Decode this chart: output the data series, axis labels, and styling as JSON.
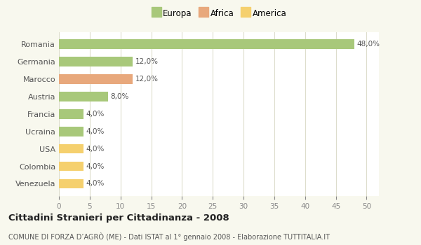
{
  "categories": [
    "Romania",
    "Germania",
    "Marocco",
    "Austria",
    "Francia",
    "Ucraina",
    "USA",
    "Colombia",
    "Venezuela"
  ],
  "values": [
    48.0,
    12.0,
    12.0,
    8.0,
    4.0,
    4.0,
    4.0,
    4.0,
    4.0
  ],
  "colors": [
    "#a8c87a",
    "#a8c87a",
    "#e8a87c",
    "#a8c87a",
    "#a8c87a",
    "#a8c87a",
    "#f5d06e",
    "#f5d06e",
    "#f5d06e"
  ],
  "legend": [
    {
      "label": "Europa",
      "color": "#a8c87a"
    },
    {
      "label": "Africa",
      "color": "#e8a87c"
    },
    {
      "label": "America",
      "color": "#f5d06e"
    }
  ],
  "xlim": [
    0,
    52
  ],
  "xticks": [
    0,
    5,
    10,
    15,
    20,
    25,
    30,
    35,
    40,
    45,
    50
  ],
  "title": "Cittadini Stranieri per Cittadinanza - 2008",
  "subtitle": "COMUNE DI FORZA D’AGRÒ (ME) - Dati ISTAT al 1° gennaio 2008 - Elaborazione TUTTITALIA.IT",
  "bg_color": "#f8f8ee",
  "plot_bg_color": "#ffffff",
  "grid_color": "#ddddcc",
  "bar_height": 0.55,
  "label_color": "#555555",
  "tick_color": "#888888"
}
